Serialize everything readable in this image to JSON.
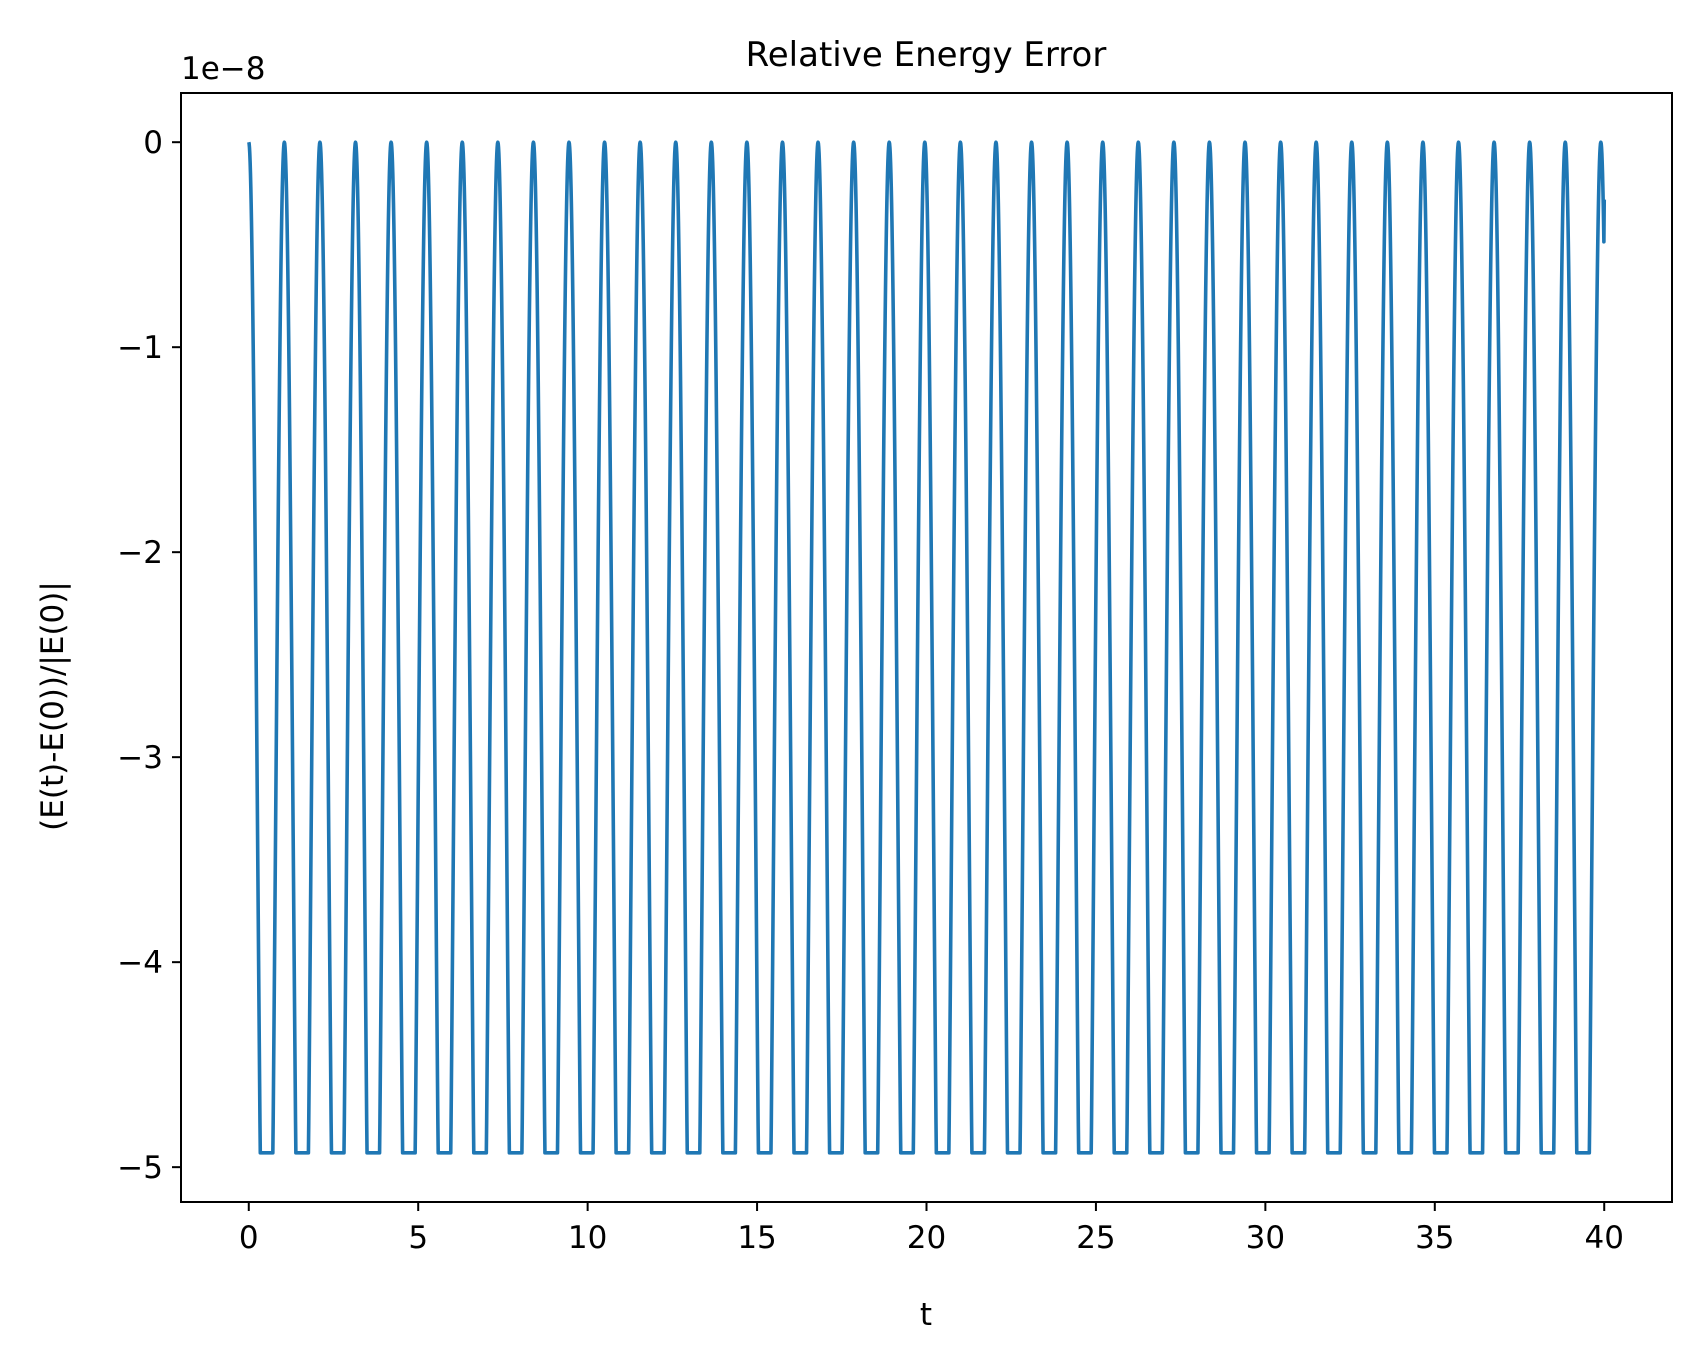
{
  "chart_data": {
    "type": "line",
    "title": "Relative Energy Error",
    "xlabel": "t",
    "ylabel": "(E(t)-E(0))/|E(0)|",
    "offset_label": "1e−8",
    "xlim": [
      -2.0,
      42.0
    ],
    "ylim": [
      5.17,
      -0.24
    ],
    "ylim_note": "y axis in units of 1e-8; ylim given as [bottom magnitude, top] is [-5.17, 0.24]",
    "ylim_values": [
      -5.17,
      0.24
    ],
    "xticks": [
      0,
      5,
      10,
      15,
      20,
      25,
      30,
      35,
      40
    ],
    "xtick_labels": [
      "0",
      "5",
      "10",
      "15",
      "20",
      "25",
      "30",
      "35",
      "40"
    ],
    "yticks": [
      0,
      -1,
      -2,
      -3,
      -4,
      -5
    ],
    "ytick_labels": [
      "0",
      "−1",
      "−2",
      "−3",
      "−4",
      "−5"
    ],
    "grid": false,
    "legend": "none",
    "series": [
      {
        "color": "#1f77b4",
        "x_range": [
          0,
          40
        ],
        "min": -4.93,
        "max": 0,
        "period": 1.05,
        "end_value": -0.28
      }
    ]
  }
}
